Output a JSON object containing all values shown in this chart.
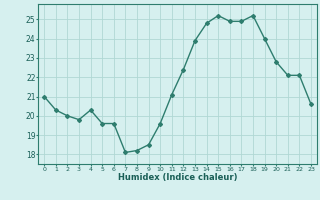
{
  "x": [
    0,
    1,
    2,
    3,
    4,
    5,
    6,
    7,
    8,
    9,
    10,
    11,
    12,
    13,
    14,
    15,
    16,
    17,
    18,
    19,
    20,
    21,
    22,
    23
  ],
  "y": [
    21.0,
    20.3,
    20.0,
    19.8,
    20.3,
    19.6,
    19.6,
    18.1,
    18.2,
    18.5,
    19.6,
    21.1,
    22.4,
    23.9,
    24.8,
    25.2,
    24.9,
    24.9,
    25.2,
    24.0,
    22.8,
    22.1,
    22.1,
    20.6
  ],
  "line_color": "#2e7d6e",
  "marker": "D",
  "marker_size": 2.0,
  "bg_color": "#d6f0ef",
  "grid_color": "#b0d8d4",
  "xlabel": "Humidex (Indice chaleur)",
  "xlim": [
    -0.5,
    23.5
  ],
  "ylim": [
    17.5,
    25.8
  ],
  "yticks": [
    18,
    19,
    20,
    21,
    22,
    23,
    24,
    25
  ],
  "xtick_labels": [
    "0",
    "1",
    "2",
    "3",
    "4",
    "5",
    "6",
    "7",
    "8",
    "9",
    "10",
    "11",
    "12",
    "13",
    "14",
    "15",
    "16",
    "17",
    "18",
    "19",
    "20",
    "21",
    "22",
    "23"
  ],
  "font_color": "#1a5f57",
  "linewidth": 1.0,
  "xlabel_fontsize": 6.0,
  "xtick_fontsize": 4.5,
  "ytick_fontsize": 5.5
}
